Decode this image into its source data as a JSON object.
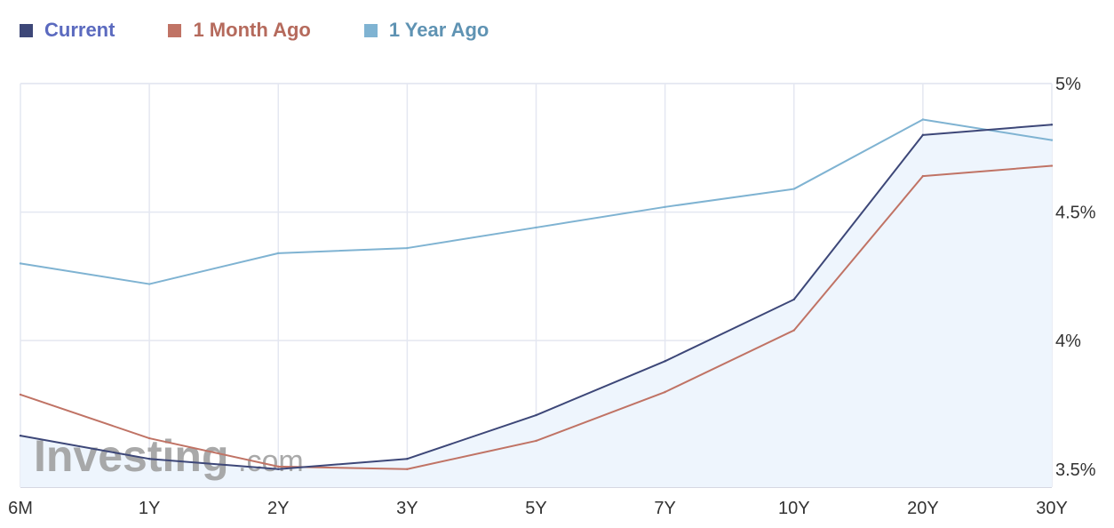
{
  "chart_data": {
    "type": "line",
    "categories": [
      "6M",
      "1Y",
      "2Y",
      "3Y",
      "5Y",
      "7Y",
      "10Y",
      "20Y",
      "30Y"
    ],
    "series": [
      {
        "name": "Current",
        "color": "#3d4778",
        "values": [
          3.63,
          3.54,
          3.5,
          3.54,
          3.71,
          3.92,
          4.16,
          4.8,
          4.84
        ]
      },
      {
        "name": "1 Month Ago",
        "color": "#c07365",
        "values": [
          3.79,
          3.62,
          3.51,
          3.5,
          3.61,
          3.8,
          4.04,
          4.64,
          4.68
        ]
      },
      {
        "name": "1 Year Ago",
        "color": "#7fb3d2",
        "values": [
          4.3,
          4.22,
          4.34,
          4.36,
          4.44,
          4.52,
          4.59,
          4.86,
          4.78
        ]
      }
    ],
    "y_ticks": [
      "3.5%",
      "4%",
      "4.5%",
      "5%"
    ],
    "y_tick_values": [
      3.5,
      4.0,
      4.5,
      5.0
    ],
    "ylim": [
      3.43,
      5.0
    ],
    "grid": true,
    "legend_position": "top-left",
    "area_fill_series": "Current",
    "area_fill_color": "#eef5fd",
    "title": "",
    "xlabel": "",
    "ylabel": ""
  },
  "legend_text_colors": [
    "#5b6abf",
    "#b56a5c",
    "#5f93b3"
  ],
  "watermark": {
    "brand": "Investing",
    "suffix": ".com"
  }
}
